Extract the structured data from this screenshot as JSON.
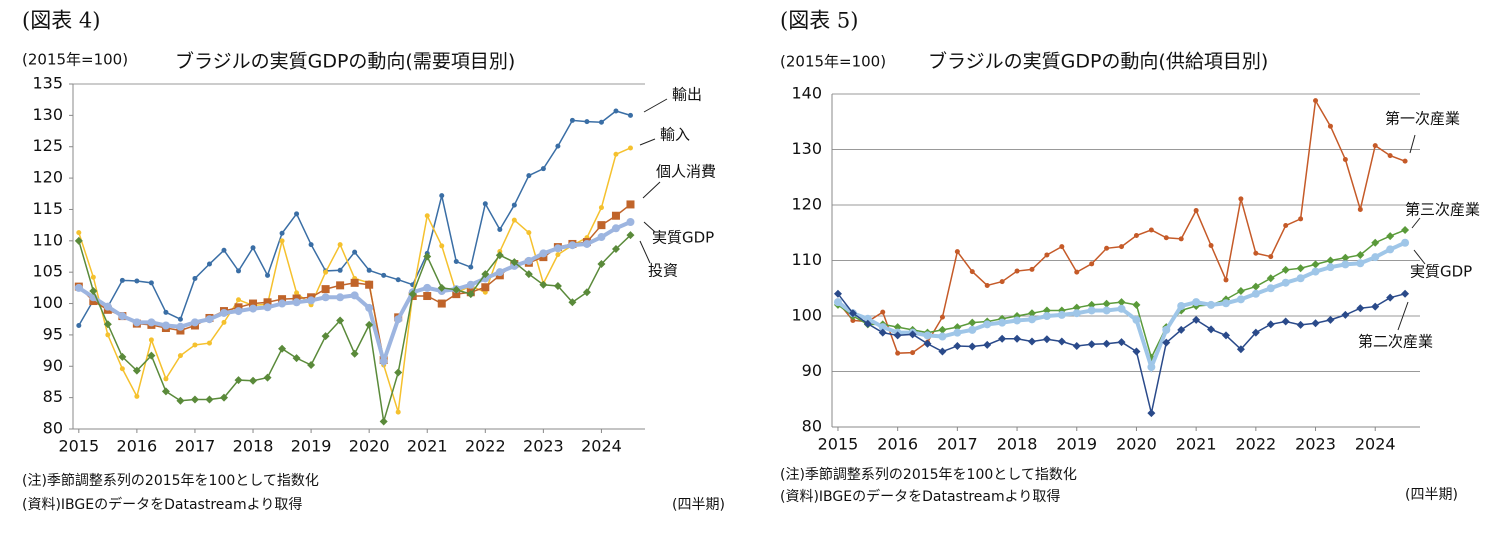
{
  "chart_data": [
    {
      "type": "line",
      "figure_label": "(図表 4)",
      "unit_label": "(2015年=100)",
      "title": "ブラジルの実質GDPの動向(需要項目別)",
      "notes": [
        "(注)季節調整系列の2015年を100として指数化",
        "(資料)IBGEのデータをDatastreamより取得"
      ],
      "x_label": "(四半期)",
      "xlim": [
        2014.9,
        2024.75
      ],
      "xticks": [
        2015,
        2016,
        2017,
        2018,
        2019,
        2020,
        2021,
        2022,
        2023,
        2024
      ],
      "ylim": [
        80,
        135
      ],
      "yticks": [
        80,
        85,
        90,
        95,
        100,
        105,
        110,
        115,
        120,
        125,
        130,
        135
      ],
      "grid": false,
      "x": [
        2015,
        2015.25,
        2015.5,
        2015.75,
        2016,
        2016.25,
        2016.5,
        2016.75,
        2017,
        2017.25,
        2017.5,
        2017.75,
        2018,
        2018.25,
        2018.5,
        2018.75,
        2019,
        2019.25,
        2019.5,
        2019.75,
        2020,
        2020.25,
        2020.5,
        2020.75,
        2021,
        2021.25,
        2021.5,
        2021.75,
        2022,
        2022.25,
        2022.5,
        2022.75,
        2023,
        2023.25,
        2023.5,
        2023.75,
        2024,
        2024.25,
        2024.5
      ],
      "series": [
        {
          "name": "輸出",
          "color": "#3a6ea5",
          "marker": "circle",
          "values": [
            96.5,
            100.5,
            99.5,
            103.7,
            103.6,
            103.3,
            98.6,
            97.5,
            104,
            106.3,
            108.5,
            105.2,
            108.9,
            104.5,
            111.2,
            114.3,
            109.4,
            105.2,
            105.3,
            108.2,
            105.3,
            104.5,
            103.8,
            103,
            108,
            117.2,
            106.7,
            105.8,
            115.9,
            111.8,
            115.7,
            120.4,
            121.5,
            125.1,
            129.2,
            129,
            128.9,
            130.7,
            130
          ]
        },
        {
          "name": "輸入",
          "color": "#f5c12e",
          "marker": "circle",
          "values": [
            111.3,
            104.2,
            95,
            89.6,
            85.2,
            94.2,
            88,
            91.7,
            93.4,
            93.7,
            97,
            100.6,
            99.7,
            99.9,
            110,
            101.7,
            99.8,
            105,
            109.4,
            104,
            103.3,
            90.2,
            82.7,
            101.5,
            114,
            109.2,
            101.7,
            102.8,
            101.8,
            108.3,
            113.3,
            111.3,
            103.2,
            107.8,
            109.3,
            110.5,
            115.3,
            123.8,
            124.8
          ]
        },
        {
          "name": "個人消費",
          "color": "#c0642a",
          "marker": "square",
          "values": [
            102.7,
            100.4,
            99,
            98,
            96.8,
            96.6,
            96.1,
            95.7,
            96.5,
            97.7,
            98.8,
            99.4,
            100,
            100.2,
            100.7,
            100.8,
            101,
            102.3,
            102.9,
            103.3,
            103,
            91,
            97.8,
            101.2,
            101.2,
            100,
            101.5,
            101.8,
            102.6,
            104.5,
            106.3,
            106.5,
            107.4,
            109,
            109.5,
            109.8,
            112.5,
            114,
            115.8
          ]
        },
        {
          "name": "実質GDP",
          "color": "#9db5e0",
          "marker": "circle",
          "values": [
            102.5,
            101,
            99.5,
            98,
            97,
            97,
            96.5,
            96.3,
            97,
            97.5,
            98.5,
            98.8,
            99.2,
            99.4,
            100,
            100.2,
            100.5,
            101,
            101,
            101.3,
            99.3,
            90.8,
            97.5,
            101.8,
            102.5,
            102,
            102.3,
            103,
            104,
            105,
            106,
            106.8,
            108,
            108.8,
            109.3,
            109.5,
            110.6,
            112,
            113
          ]
        },
        {
          "name": "投資",
          "color": "#5a8a3a",
          "marker": "diamond",
          "values": [
            110,
            102,
            96.7,
            91.5,
            89.3,
            91.7,
            86,
            84.5,
            84.7,
            84.7,
            85,
            87.8,
            87.7,
            88.2,
            92.8,
            91.3,
            90.2,
            94.8,
            97.3,
            92,
            96.6,
            81.2,
            89,
            101.5,
            107.5,
            102.5,
            102.2,
            101.5,
            104.7,
            107.7,
            106.6,
            104.7,
            103,
            102.8,
            100.2,
            101.8,
            106.3,
            108.7,
            110.9
          ]
        }
      ]
    },
    {
      "type": "line",
      "figure_label": "(図表 5)",
      "unit_label": "(2015年=100)",
      "title": "ブラジルの実質GDPの動向(供給項目別)",
      "notes": [
        "(注)季節調整系列の2015年を100として指数化",
        "(資料)IBGEのデータをDatastreamより取得"
      ],
      "x_label": "(四半期)",
      "xlim": [
        2014.9,
        2024.75
      ],
      "xticks": [
        2015,
        2016,
        2017,
        2018,
        2019,
        2020,
        2021,
        2022,
        2023,
        2024
      ],
      "ylim": [
        80,
        140
      ],
      "yticks": [
        80,
        90,
        100,
        110,
        120,
        130,
        140
      ],
      "grid": true,
      "x": [
        2015,
        2015.25,
        2015.5,
        2015.75,
        2016,
        2016.25,
        2016.5,
        2016.75,
        2017,
        2017.25,
        2017.5,
        2017.75,
        2018,
        2018.25,
        2018.5,
        2018.75,
        2019,
        2019.25,
        2019.5,
        2019.75,
        2020,
        2020.25,
        2020.5,
        2020.75,
        2021,
        2021.25,
        2021.5,
        2021.75,
        2022,
        2022.25,
        2022.5,
        2022.75,
        2023,
        2023.25,
        2023.5,
        2023.75,
        2024,
        2024.25,
        2024.5
      ],
      "series": [
        {
          "name": "第一次産業",
          "color": "#c55a28",
          "marker": "circle",
          "values": [
            102.5,
            99.2,
            99,
            100.7,
            93.3,
            93.4,
            95.3,
            99.8,
            111.6,
            108,
            105.5,
            106.2,
            108.1,
            108.4,
            111,
            112.5,
            107.9,
            109.4,
            112.2,
            112.5,
            114.5,
            115.5,
            114.1,
            113.9,
            119,
            112.7,
            106.5,
            121.1,
            111.3,
            110.7,
            116.3,
            117.5,
            138.8,
            134.2,
            128.2,
            119.2,
            130.7,
            128.9,
            127.9
          ]
        },
        {
          "name": "第三次産業",
          "color": "#5a9a3a",
          "marker": "diamond",
          "values": [
            102,
            100,
            98.5,
            98.5,
            98,
            97.5,
            97,
            97.5,
            98,
            98.8,
            99,
            99.5,
            100,
            100.5,
            101,
            101,
            101.5,
            102,
            102.2,
            102.5,
            102,
            92.5,
            98,
            101,
            101.8,
            102,
            103,
            104.5,
            105.3,
            106.8,
            108.3,
            108.6,
            109.3,
            110,
            110.5,
            111,
            113.2,
            114.4,
            115.5
          ]
        },
        {
          "name": "実質GDP",
          "color": "#9fc6e8",
          "marker": "circle",
          "values": [
            102.5,
            100.5,
            99.5,
            98,
            97,
            97,
            96.5,
            96.3,
            97,
            97.5,
            98.5,
            98.8,
            99.2,
            99.4,
            100,
            100.2,
            100.5,
            101,
            101,
            101.3,
            99.3,
            90.8,
            97.5,
            101.8,
            102.5,
            102,
            102.3,
            103,
            104,
            105,
            106,
            106.8,
            108,
            108.8,
            109.3,
            109.5,
            110.6,
            112,
            113.2
          ]
        },
        {
          "name": "第二次産業",
          "color": "#2a4a8a",
          "marker": "diamond",
          "values": [
            104,
            100.5,
            98.6,
            97,
            96.5,
            96.7,
            95,
            93.6,
            94.6,
            94.5,
            94.8,
            95.9,
            95.9,
            95.4,
            95.8,
            95.4,
            94.6,
            94.9,
            95,
            95.3,
            93.6,
            82.5,
            95.2,
            97.5,
            99.3,
            97.6,
            96.5,
            94,
            97,
            98.5,
            99,
            98.4,
            98.7,
            99.3,
            100.2,
            101.4,
            101.7,
            103.3,
            104
          ]
        }
      ]
    }
  ]
}
